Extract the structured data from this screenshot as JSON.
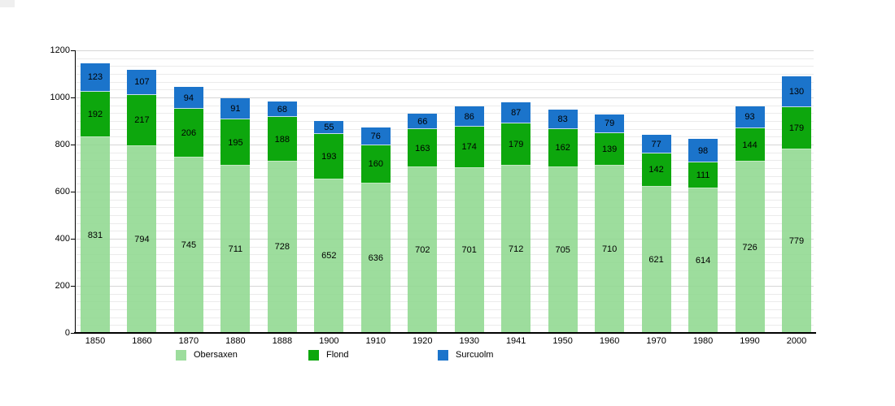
{
  "chart_data": {
    "type": "bar",
    "stacked": true,
    "title": "",
    "xlabel": "",
    "ylabel": "",
    "categories": [
      "1850",
      "1860",
      "1870",
      "1880",
      "1888",
      "1900",
      "1910",
      "1920",
      "1930",
      "1941",
      "1950",
      "1960",
      "1970",
      "1980",
      "1990",
      "2000"
    ],
    "series": [
      {
        "name": "Obersaxen",
        "color": "#8ed88edd",
        "values": [
          831,
          794,
          745,
          711,
          728,
          652,
          636,
          702,
          701,
          712,
          705,
          710,
          621,
          614,
          726,
          779
        ]
      },
      {
        "name": "Flond",
        "color": "#0da70d",
        "values": [
          192,
          217,
          206,
          195,
          188,
          193,
          160,
          163,
          174,
          179,
          162,
          139,
          142,
          111,
          144,
          179
        ]
      },
      {
        "name": "Surcuolm",
        "color": "#1b74cb",
        "values": [
          123,
          107,
          94,
          91,
          68,
          55,
          76,
          66,
          86,
          87,
          83,
          79,
          77,
          98,
          93,
          130
        ]
      }
    ],
    "ylim": [
      0,
      1200
    ],
    "yticks": [
      0,
      200,
      400,
      600,
      800,
      1000,
      1200
    ],
    "minor_grid_divisions_per_major": 6,
    "grid": "horizontal",
    "legend_position": "bottom",
    "value_labels": "inside-center"
  },
  "styles": {
    "background": "#ffffff",
    "grid_minor": "#ebebeb",
    "grid_major": "#d6d6d6",
    "axis": "#000000",
    "text": "#000000"
  }
}
